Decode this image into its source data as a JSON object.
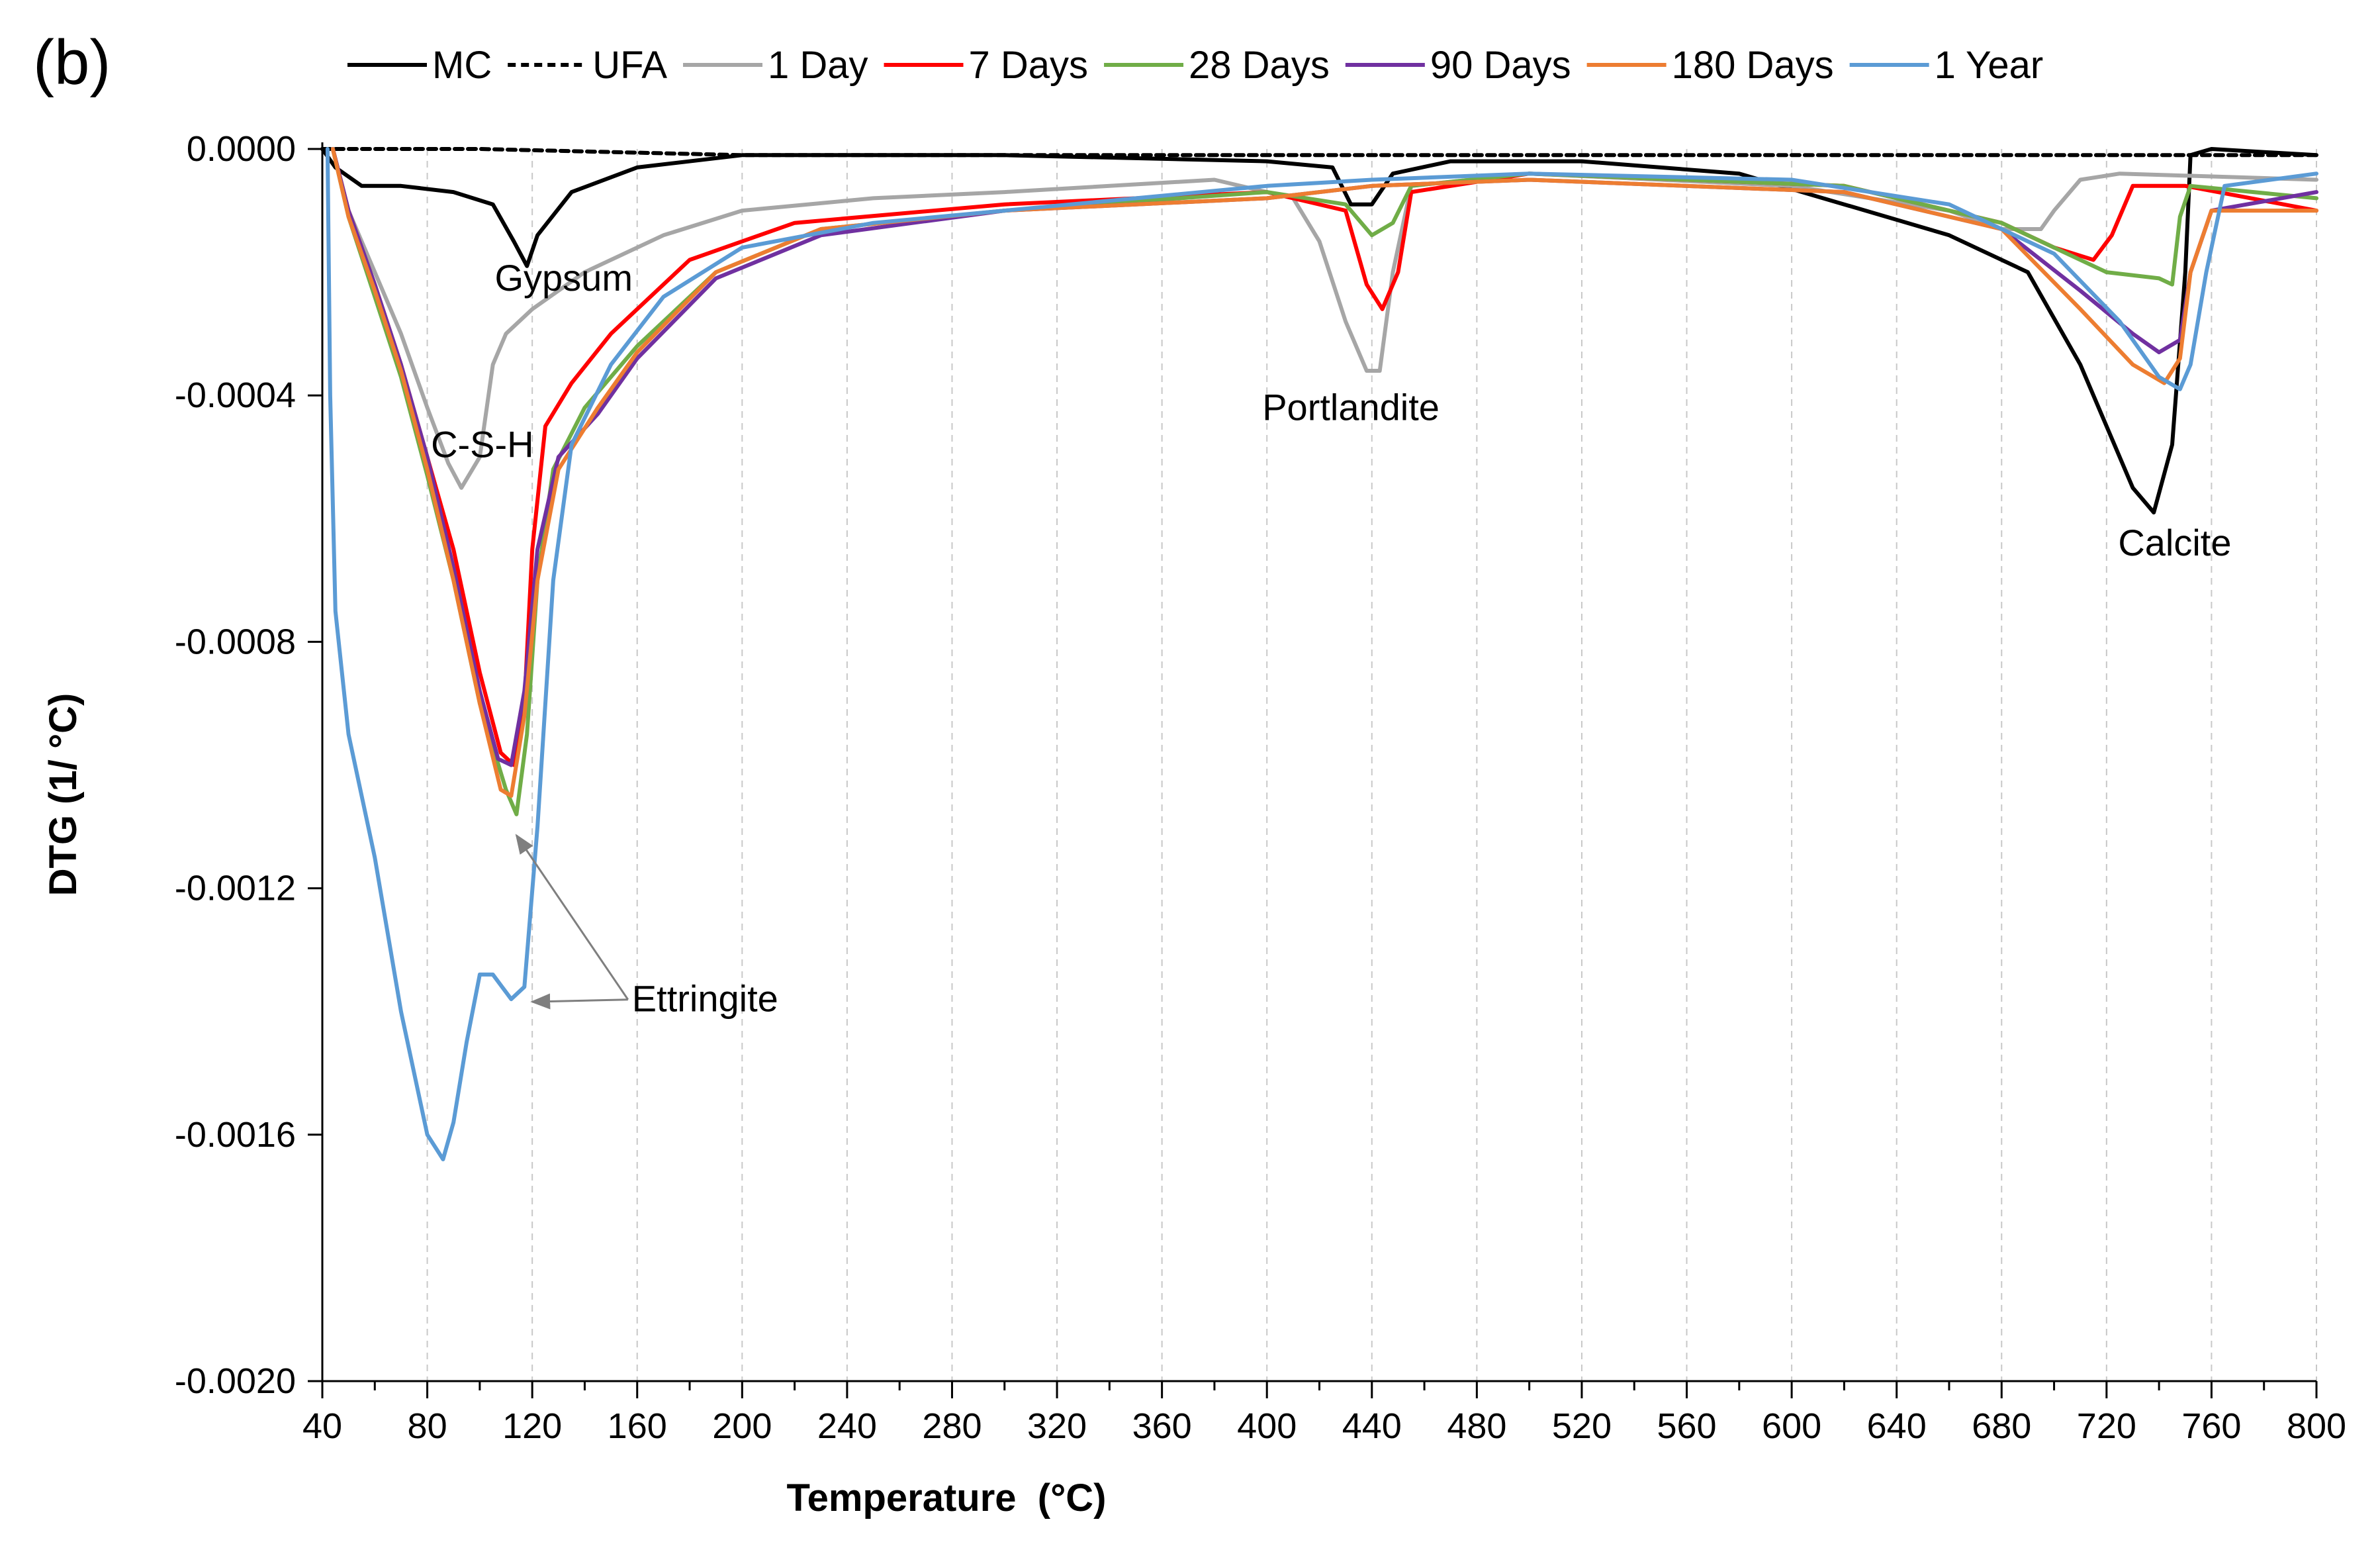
{
  "panel_label": "(b)",
  "chart_data": {
    "type": "line",
    "xlabel": "Temperature  (°C)",
    "ylabel": "DTG (1/ °C)",
    "xlim": [
      40,
      800
    ],
    "ylim": [
      -0.002,
      0.0
    ],
    "xticks": [
      "40",
      "80",
      "120",
      "160",
      "200",
      "240",
      "280",
      "320",
      "360",
      "400",
      "440",
      "480",
      "520",
      "560",
      "600",
      "640",
      "680",
      "720",
      "760",
      "800"
    ],
    "yticks": [
      "0.0000",
      "-0.0004",
      "-0.0008",
      "-0.0012",
      "-0.0016",
      "-0.0020"
    ],
    "grid": "vertical dashed",
    "legend": "top",
    "series": [
      {
        "name": "MC",
        "color": "#000000",
        "dash": "solid",
        "points": [
          [
            40,
            0
          ],
          [
            45,
            -3e-05
          ],
          [
            55,
            -6e-05
          ],
          [
            70,
            -6e-05
          ],
          [
            90,
            -7e-05
          ],
          [
            105,
            -9e-05
          ],
          [
            113,
            -0.00015
          ],
          [
            118,
            -0.00019
          ],
          [
            122,
            -0.00014
          ],
          [
            135,
            -7e-05
          ],
          [
            160,
            -3e-05
          ],
          [
            200,
            -1e-05
          ],
          [
            300,
            -1e-05
          ],
          [
            400,
            -2e-05
          ],
          [
            425,
            -3e-05
          ],
          [
            432,
            -9e-05
          ],
          [
            440,
            -9e-05
          ],
          [
            448,
            -4e-05
          ],
          [
            470,
            -2e-05
          ],
          [
            520,
            -2e-05
          ],
          [
            580,
            -4e-05
          ],
          [
            620,
            -9e-05
          ],
          [
            660,
            -0.00014
          ],
          [
            690,
            -0.0002
          ],
          [
            710,
            -0.00035
          ],
          [
            730,
            -0.00055
          ],
          [
            738,
            -0.00059
          ],
          [
            745,
            -0.00048
          ],
          [
            750,
            -0.0002
          ],
          [
            752,
            -1e-05
          ],
          [
            760,
            0
          ],
          [
            800,
            -1e-05
          ]
        ]
      },
      {
        "name": "UFA",
        "color": "#000000",
        "dash": "dashed",
        "points": [
          [
            40,
            0
          ],
          [
            100,
            0
          ],
          [
            200,
            -1e-05
          ],
          [
            400,
            -1e-05
          ],
          [
            500,
            -1e-05
          ],
          [
            600,
            -1e-05
          ],
          [
            700,
            -1e-05
          ],
          [
            800,
            -1e-05
          ]
        ]
      },
      {
        "name": "1 Day",
        "color": "#a6a6a6",
        "dash": "solid",
        "points": [
          [
            44,
            0
          ],
          [
            50,
            -0.0001
          ],
          [
            60,
            -0.0002
          ],
          [
            70,
            -0.0003
          ],
          [
            80,
            -0.00042
          ],
          [
            88,
            -0.00051
          ],
          [
            93,
            -0.00055
          ],
          [
            100,
            -0.0005
          ],
          [
            105,
            -0.00035
          ],
          [
            110,
            -0.0003
          ],
          [
            120,
            -0.00026
          ],
          [
            140,
            -0.0002
          ],
          [
            170,
            -0.00014
          ],
          [
            200,
            -0.0001
          ],
          [
            250,
            -8e-05
          ],
          [
            300,
            -7e-05
          ],
          [
            380,
            -5e-05
          ],
          [
            410,
            -8e-05
          ],
          [
            420,
            -0.00015
          ],
          [
            430,
            -0.00028
          ],
          [
            438,
            -0.00036
          ],
          [
            443,
            -0.00036
          ],
          [
            448,
            -0.0002
          ],
          [
            455,
            -6e-05
          ],
          [
            500,
            -4e-05
          ],
          [
            600,
            -6e-05
          ],
          [
            660,
            -0.0001
          ],
          [
            680,
            -0.00013
          ],
          [
            695,
            -0.00013
          ],
          [
            700,
            -0.0001
          ],
          [
            710,
            -5e-05
          ],
          [
            725,
            -4e-05
          ],
          [
            800,
            -5e-05
          ]
        ]
      },
      {
        "name": "7 Days",
        "color": "#ff0000",
        "dash": "solid",
        "points": [
          [
            44,
            0
          ],
          [
            50,
            -0.0001
          ],
          [
            60,
            -0.00022
          ],
          [
            70,
            -0.00035
          ],
          [
            80,
            -0.0005
          ],
          [
            90,
            -0.00065
          ],
          [
            100,
            -0.00085
          ],
          [
            108,
            -0.00098
          ],
          [
            113,
            -0.001
          ],
          [
            117,
            -0.0009
          ],
          [
            120,
            -0.00065
          ],
          [
            125,
            -0.00045
          ],
          [
            135,
            -0.00038
          ],
          [
            150,
            -0.0003
          ],
          [
            180,
            -0.00018
          ],
          [
            220,
            -0.00012
          ],
          [
            300,
            -9e-05
          ],
          [
            400,
            -7e-05
          ],
          [
            430,
            -0.0001
          ],
          [
            438,
            -0.00022
          ],
          [
            444,
            -0.00026
          ],
          [
            450,
            -0.0002
          ],
          [
            455,
            -7e-05
          ],
          [
            500,
            -4e-05
          ],
          [
            620,
            -6e-05
          ],
          [
            680,
            -0.00012
          ],
          [
            700,
            -0.00016
          ],
          [
            715,
            -0.00018
          ],
          [
            722,
            -0.00014
          ],
          [
            730,
            -6e-05
          ],
          [
            750,
            -6e-05
          ],
          [
            800,
            -0.0001
          ]
        ]
      },
      {
        "name": "28 Days",
        "color": "#70ad47",
        "dash": "solid",
        "points": [
          [
            44,
            0
          ],
          [
            50,
            -0.00011
          ],
          [
            60,
            -0.00024
          ],
          [
            70,
            -0.00037
          ],
          [
            80,
            -0.00053
          ],
          [
            90,
            -0.0007
          ],
          [
            100,
            -0.0009
          ],
          [
            110,
            -0.00104
          ],
          [
            114,
            -0.00108
          ],
          [
            118,
            -0.00095
          ],
          [
            122,
            -0.0007
          ],
          [
            128,
            -0.00052
          ],
          [
            140,
            -0.00042
          ],
          [
            160,
            -0.00032
          ],
          [
            190,
            -0.0002
          ],
          [
            230,
            -0.00013
          ],
          [
            300,
            -0.0001
          ],
          [
            400,
            -7e-05
          ],
          [
            430,
            -9e-05
          ],
          [
            440,
            -0.00014
          ],
          [
            448,
            -0.00012
          ],
          [
            455,
            -6e-05
          ],
          [
            500,
            -4e-05
          ],
          [
            620,
            -6e-05
          ],
          [
            680,
            -0.00012
          ],
          [
            720,
            -0.0002
          ],
          [
            740,
            -0.00021
          ],
          [
            745,
            -0.00022
          ],
          [
            748,
            -0.00011
          ],
          [
            752,
            -6e-05
          ],
          [
            800,
            -8e-05
          ]
        ]
      },
      {
        "name": "90 Days",
        "color": "#7030a0",
        "dash": "solid",
        "points": [
          [
            44,
            0
          ],
          [
            50,
            -0.0001
          ],
          [
            60,
            -0.00022
          ],
          [
            70,
            -0.00035
          ],
          [
            80,
            -0.0005
          ],
          [
            90,
            -0.00068
          ],
          [
            100,
            -0.00088
          ],
          [
            107,
            -0.00099
          ],
          [
            112,
            -0.001
          ],
          [
            117,
            -0.00088
          ],
          [
            122,
            -0.00065
          ],
          [
            130,
            -0.0005
          ],
          [
            145,
            -0.00043
          ],
          [
            160,
            -0.00034
          ],
          [
            190,
            -0.00021
          ],
          [
            230,
            -0.00014
          ],
          [
            300,
            -0.0001
          ],
          [
            400,
            -8e-05
          ],
          [
            440,
            -6e-05
          ],
          [
            500,
            -5e-05
          ],
          [
            620,
            -7e-05
          ],
          [
            680,
            -0.00013
          ],
          [
            710,
            -0.00023
          ],
          [
            730,
            -0.0003
          ],
          [
            740,
            -0.00033
          ],
          [
            748,
            -0.00031
          ],
          [
            752,
            -0.0002
          ],
          [
            760,
            -0.0001
          ],
          [
            800,
            -7e-05
          ]
        ]
      },
      {
        "name": "180 Days",
        "color": "#ed7d31",
        "dash": "solid",
        "points": [
          [
            44,
            0
          ],
          [
            50,
            -0.00011
          ],
          [
            60,
            -0.00023
          ],
          [
            70,
            -0.00036
          ],
          [
            80,
            -0.00052
          ],
          [
            90,
            -0.0007
          ],
          [
            100,
            -0.0009
          ],
          [
            108,
            -0.00104
          ],
          [
            112,
            -0.00105
          ],
          [
            117,
            -0.00092
          ],
          [
            122,
            -0.0007
          ],
          [
            130,
            -0.00052
          ],
          [
            145,
            -0.00042
          ],
          [
            160,
            -0.00033
          ],
          [
            190,
            -0.0002
          ],
          [
            230,
            -0.00013
          ],
          [
            300,
            -0.0001
          ],
          [
            400,
            -8e-05
          ],
          [
            440,
            -6e-05
          ],
          [
            500,
            -5e-05
          ],
          [
            620,
            -7e-05
          ],
          [
            680,
            -0.00013
          ],
          [
            710,
            -0.00026
          ],
          [
            730,
            -0.00035
          ],
          [
            742,
            -0.00038
          ],
          [
            748,
            -0.00034
          ],
          [
            752,
            -0.0002
          ],
          [
            760,
            -0.0001
          ],
          [
            800,
            -0.0001
          ]
        ]
      },
      {
        "name": "1 Year",
        "color": "#5b9bd5",
        "dash": "solid",
        "points": [
          [
            42,
            0
          ],
          [
            43,
            -0.0004
          ],
          [
            45,
            -0.00075
          ],
          [
            50,
            -0.00095
          ],
          [
            60,
            -0.00115
          ],
          [
            70,
            -0.0014
          ],
          [
            80,
            -0.0016
          ],
          [
            86,
            -0.00164
          ],
          [
            90,
            -0.00158
          ],
          [
            95,
            -0.00145
          ],
          [
            100,
            -0.00134
          ],
          [
            105,
            -0.00134
          ],
          [
            112,
            -0.00138
          ],
          [
            117,
            -0.00136
          ],
          [
            122,
            -0.0011
          ],
          [
            128,
            -0.0007
          ],
          [
            135,
            -0.00048
          ],
          [
            150,
            -0.00035
          ],
          [
            170,
            -0.00024
          ],
          [
            200,
            -0.00016
          ],
          [
            250,
            -0.00012
          ],
          [
            300,
            -0.0001
          ],
          [
            400,
            -6e-05
          ],
          [
            440,
            -5e-05
          ],
          [
            500,
            -4e-05
          ],
          [
            600,
            -5e-05
          ],
          [
            660,
            -9e-05
          ],
          [
            700,
            -0.00017
          ],
          [
            725,
            -0.00028
          ],
          [
            740,
            -0.00037
          ],
          [
            748,
            -0.00039
          ],
          [
            752,
            -0.00035
          ],
          [
            758,
            -0.0002
          ],
          [
            765,
            -6e-05
          ],
          [
            800,
            -4e-05
          ]
        ]
      }
    ],
    "annotations": [
      {
        "text": "Gypsum",
        "x": 132,
        "y": -0.00023
      },
      {
        "text": "C-S-H",
        "x": 101,
        "y": -0.0005
      },
      {
        "text": "Portlandite",
        "x": 432,
        "y": -0.00044
      },
      {
        "text": "Calcite",
        "x": 746,
        "y": -0.00066
      },
      {
        "text": "Ettringite",
        "x": 158,
        "y": -0.0014,
        "arrows": [
          [
            113,
            -0.00111
          ],
          [
            119,
            -0.00138
          ]
        ]
      }
    ]
  }
}
